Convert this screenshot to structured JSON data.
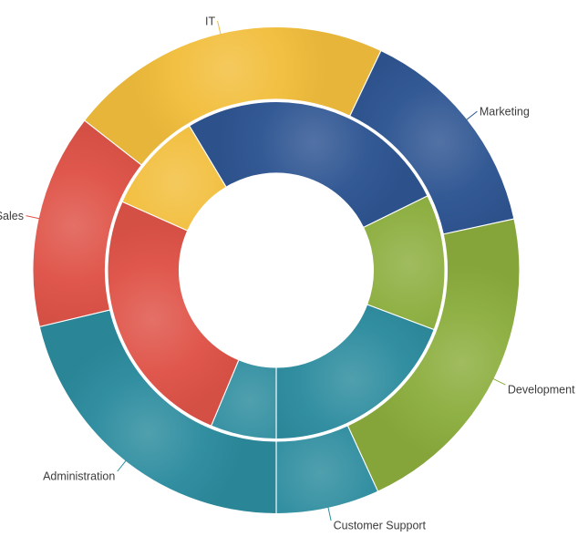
{
  "app": {
    "background": "#FFFFFF",
    "label_color": "#3C3C3C",
    "slice_border_color": "#FFFFFF"
  },
  "chart_data": {
    "type": "pie",
    "subtype": "multi-ring-doughnut",
    "title": "",
    "legend": "none",
    "grid": "off",
    "categories": [
      "IT",
      "Marketing",
      "Development",
      "Customer Support",
      "Administration",
      "Sales"
    ],
    "palette": {
      "IT": "#F2BE3C",
      "Marketing": "#2E5592",
      "Development": "#8CAE3E",
      "Customer Support": "#2C8C9E",
      "Administration": "#2C8C9E",
      "Sales": "#DF5348"
    },
    "series": [
      {
        "name": "inner-ring",
        "slices": [
          {
            "label": "IT",
            "color": "#F2BE3C",
            "start_deg": 294.0,
            "end_deg": 329.0,
            "sweep_deg": 35.0,
            "percent": 9.7
          },
          {
            "label": "Marketing",
            "color": "#2E5592",
            "start_deg": 329.0,
            "end_deg": 423.8,
            "sweep_deg": 94.8,
            "percent": 26.3
          },
          {
            "label": "Development",
            "color": "#8CAE3E",
            "start_deg": 63.8,
            "end_deg": 110.6,
            "sweep_deg": 46.8,
            "percent": 13.0
          },
          {
            "label": "Customer Support",
            "color": "#2C8C9E",
            "start_deg": 110.6,
            "end_deg": 180.0,
            "sweep_deg": 69.4,
            "percent": 19.3
          },
          {
            "label": "Administration",
            "color": "#2C8C9E",
            "start_deg": 180.0,
            "end_deg": 202.7,
            "sweep_deg": 22.7,
            "percent": 6.3
          },
          {
            "label": "Sales",
            "color": "#DF5348",
            "start_deg": 202.7,
            "end_deg": 294.0,
            "sweep_deg": 91.3,
            "percent": 25.4
          }
        ]
      },
      {
        "name": "outer-ring",
        "slices": [
          {
            "label": "IT",
            "color": "#F2BE3C",
            "start_deg": 308.0,
            "end_deg": 385.5,
            "sweep_deg": 77.5,
            "percent": 21.5
          },
          {
            "label": "Marketing",
            "color": "#2E5592",
            "start_deg": 25.5,
            "end_deg": 77.8,
            "sweep_deg": 52.3,
            "percent": 14.5
          },
          {
            "label": "Development",
            "color": "#8CAE3E",
            "start_deg": 77.8,
            "end_deg": 155.3,
            "sweep_deg": 77.5,
            "percent": 21.5
          },
          {
            "label": "Customer Support",
            "color": "#2C8C9E",
            "start_deg": 155.3,
            "end_deg": 180.0,
            "sweep_deg": 24.7,
            "percent": 6.9
          },
          {
            "label": "Administration",
            "color": "#2C8C9E",
            "start_deg": 180.0,
            "end_deg": 256.6,
            "sweep_deg": 76.6,
            "percent": 21.3
          },
          {
            "label": "Sales",
            "color": "#DF5348",
            "start_deg": 256.6,
            "end_deg": 308.0,
            "sweep_deg": 51.4,
            "percent": 14.3
          }
        ]
      }
    ]
  }
}
